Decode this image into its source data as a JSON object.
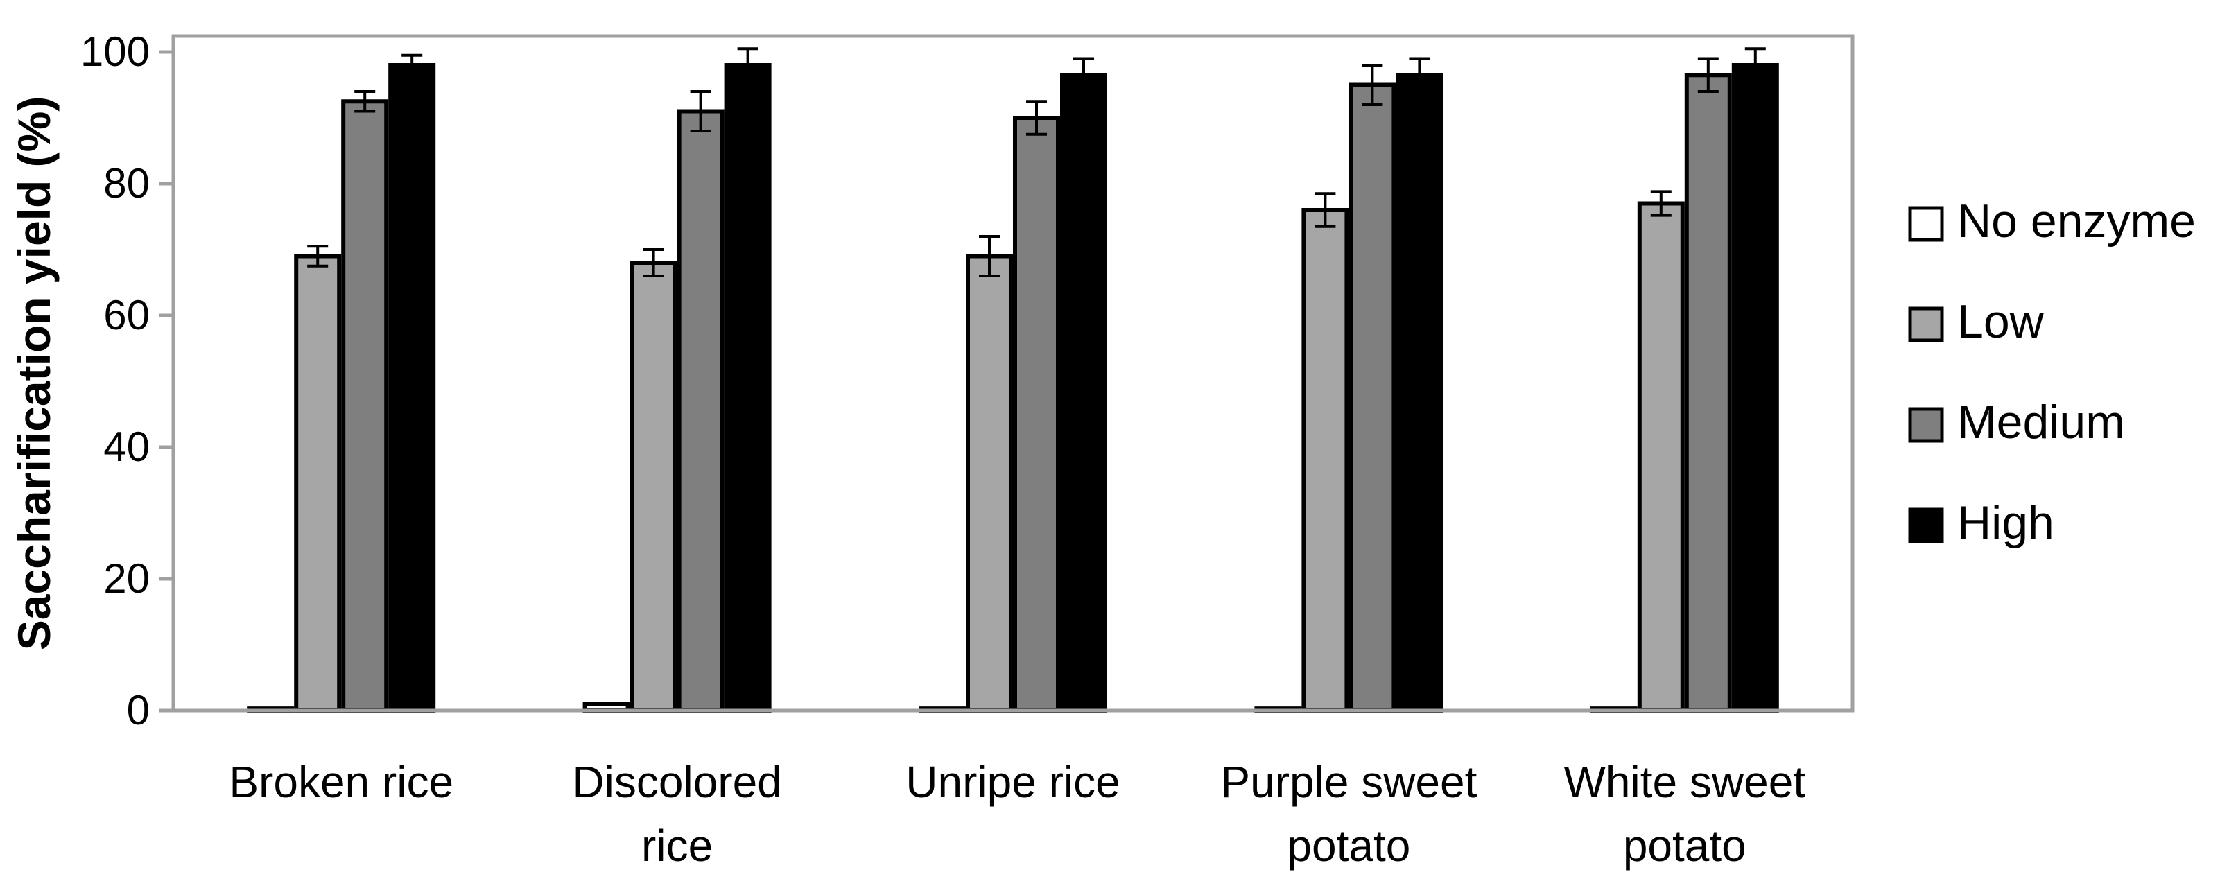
{
  "chart_data": {
    "type": "bar",
    "title": "",
    "xlabel": "",
    "ylabel": "Saccharification yield (%)",
    "ylim": [
      0,
      100
    ],
    "yticks": [
      0,
      20,
      40,
      60,
      80,
      100
    ],
    "grid": false,
    "legend_position": "right",
    "categories": [
      [
        "Broken rice"
      ],
      [
        "Discolored",
        "rice"
      ],
      [
        "Unripe rice"
      ],
      [
        "Purple sweet",
        "potato"
      ],
      [
        "White sweet",
        "potato"
      ]
    ],
    "series": [
      {
        "name": "No enzyme",
        "color": "#ffffff",
        "values": [
          0.3,
          1.0,
          0.3,
          0.3,
          0.3
        ],
        "errors": [
          0.1,
          0.5,
          0.1,
          0.1,
          0.1
        ]
      },
      {
        "name": "Low",
        "color": "#a6a6a6",
        "values": [
          69,
          68,
          69,
          76,
          77
        ],
        "errors": [
          1.5,
          2.0,
          3.0,
          2.5,
          1.8
        ]
      },
      {
        "name": "Medium",
        "color": "#7f7f7f",
        "values": [
          92.5,
          91,
          90,
          95,
          96.5
        ],
        "errors": [
          1.5,
          3.0,
          2.5,
          3.0,
          2.5
        ]
      },
      {
        "name": "High",
        "color": "#000000",
        "values": [
          98,
          98,
          96.5,
          96.5,
          98
        ],
        "errors": [
          1.5,
          2.5,
          2.5,
          2.5,
          2.5
        ]
      }
    ]
  }
}
